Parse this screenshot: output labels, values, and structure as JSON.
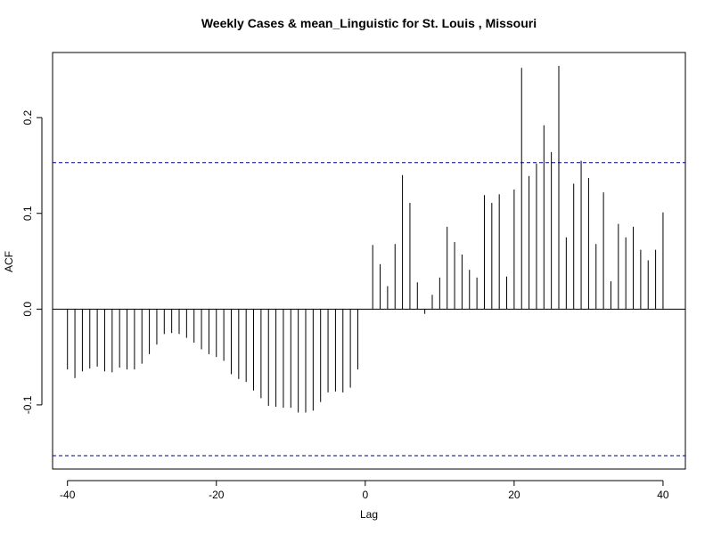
{
  "chart_data": {
    "type": "bar",
    "title": "Weekly Cases & mean_Linguistic for St. Louis , Missouri",
    "xlabel": "Lag",
    "ylabel": "ACF",
    "xlim": [
      -42,
      43
    ],
    "ylim": [
      -0.167,
      0.268
    ],
    "x_ticks": [
      -40,
      -20,
      0,
      20,
      40
    ],
    "y_ticks": [
      -0.1,
      0.0,
      0.1,
      0.2
    ],
    "x_tick_labels": [
      "-40",
      "-20",
      "0",
      "20",
      "40"
    ],
    "y_tick_labels": [
      "-0.1",
      "0.0",
      "0.1",
      "0.2"
    ],
    "confidence_bound": 0.153,
    "confidence_color": "#00008B",
    "lags": [
      -40,
      -39,
      -38,
      -37,
      -36,
      -35,
      -34,
      -33,
      -32,
      -31,
      -30,
      -29,
      -28,
      -27,
      -26,
      -25,
      -24,
      -23,
      -22,
      -21,
      -20,
      -19,
      -18,
      -17,
      -16,
      -15,
      -14,
      -13,
      -12,
      -11,
      -10,
      -9,
      -8,
      -7,
      -6,
      -5,
      -4,
      -3,
      -2,
      -1,
      0,
      1,
      2,
      3,
      4,
      5,
      6,
      7,
      8,
      9,
      10,
      11,
      12,
      13,
      14,
      15,
      16,
      17,
      18,
      19,
      20,
      21,
      22,
      23,
      24,
      25,
      26,
      27,
      28,
      29,
      30,
      31,
      32,
      33,
      34,
      35,
      36,
      37,
      38,
      39,
      40
    ],
    "values": [
      -0.063,
      -0.072,
      -0.065,
      -0.062,
      -0.06,
      -0.065,
      -0.066,
      -0.061,
      -0.063,
      -0.063,
      -0.057,
      -0.047,
      -0.037,
      -0.026,
      -0.025,
      -0.026,
      -0.03,
      -0.035,
      -0.042,
      -0.047,
      -0.05,
      -0.054,
      -0.068,
      -0.073,
      -0.076,
      -0.085,
      -0.093,
      -0.101,
      -0.102,
      -0.103,
      -0.103,
      -0.108,
      -0.108,
      -0.106,
      -0.097,
      -0.087,
      -0.086,
      -0.087,
      -0.082,
      -0.063,
      0.0,
      0.067,
      0.047,
      0.024,
      0.068,
      0.14,
      0.111,
      0.028,
      -0.005,
      0.015,
      0.033,
      0.086,
      0.07,
      0.057,
      0.041,
      0.033,
      0.119,
      0.111,
      0.12,
      0.034,
      0.125,
      0.252,
      0.139,
      0.152,
      0.192,
      0.164,
      0.254,
      0.075,
      0.131,
      0.155,
      0.137,
      0.068,
      0.122,
      0.029,
      0.089,
      0.075,
      0.086,
      0.062,
      0.051,
      0.062,
      0.101
    ]
  }
}
